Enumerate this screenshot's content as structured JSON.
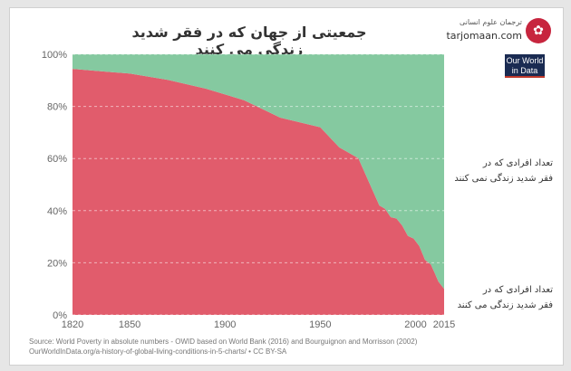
{
  "title": "جمعیتی از جهان که در فقر شدید زندگی می کنند",
  "brand": {
    "name": "ترجمان علوم انسانی",
    "site": "tarjomaan.com",
    "icon": "brand-logo-icon"
  },
  "owid": {
    "line1": "Our World",
    "line2": "in Data"
  },
  "chart_data": {
    "type": "area",
    "stacked": true,
    "x": [
      1820,
      1850,
      1870,
      1890,
      1910,
      1929,
      1950,
      1960,
      1970,
      1981,
      1984,
      1987,
      1990,
      1993,
      1996,
      1999,
      2002,
      2005,
      2008,
      2010,
      2012,
      2015
    ],
    "series": [
      {
        "name": "تعداد افرادی که در فقر شدید زندگی می کنند",
        "color": "#e15c6c",
        "values": [
          94.4,
          92.6,
          90.2,
          86.8,
          82.4,
          75.7,
          72.0,
          64.3,
          60.1,
          42.0,
          40.7,
          37.5,
          37.0,
          34.3,
          30.3,
          29.3,
          26.4,
          21.1,
          19.4,
          16.2,
          12.8,
          10.0
        ]
      },
      {
        "name": "تعداد افرادی که در فقر شدید زندگی نمی کنند",
        "color": "#85c9a0",
        "values": [
          5.6,
          7.4,
          9.8,
          13.2,
          17.6,
          24.3,
          28.0,
          35.7,
          39.9,
          58.0,
          59.3,
          62.5,
          63.0,
          65.7,
          69.7,
          70.7,
          73.6,
          78.9,
          80.6,
          83.8,
          87.2,
          90.0
        ]
      }
    ],
    "x_ticks": [
      "1820",
      "1850",
      "1900",
      "1950",
      "2000",
      "2015"
    ],
    "y_ticks": [
      "0%",
      "20%",
      "40%",
      "60%",
      "80%",
      "100%"
    ],
    "xlim": [
      1820,
      2015
    ],
    "ylim": [
      0,
      100
    ],
    "grid": "horizontal-dashed"
  },
  "legend": {
    "not_poor": {
      "line1": "تعداد افرادی که در",
      "line2": "فقر شدید زندگی نمی کنند"
    },
    "poor": {
      "line1": "تعداد افرادی که در",
      "line2": "فقر شدید زندگی می کنند"
    }
  },
  "source": {
    "line1": "Source: World Poverty in absolute numbers - OWID based on World Bank (2016) and Bourguignon and Morrisson (2002)",
    "line2": "OurWorldInData.org/a-history-of-global-living-conditions-in-5-charts/ • CC BY-SA"
  }
}
